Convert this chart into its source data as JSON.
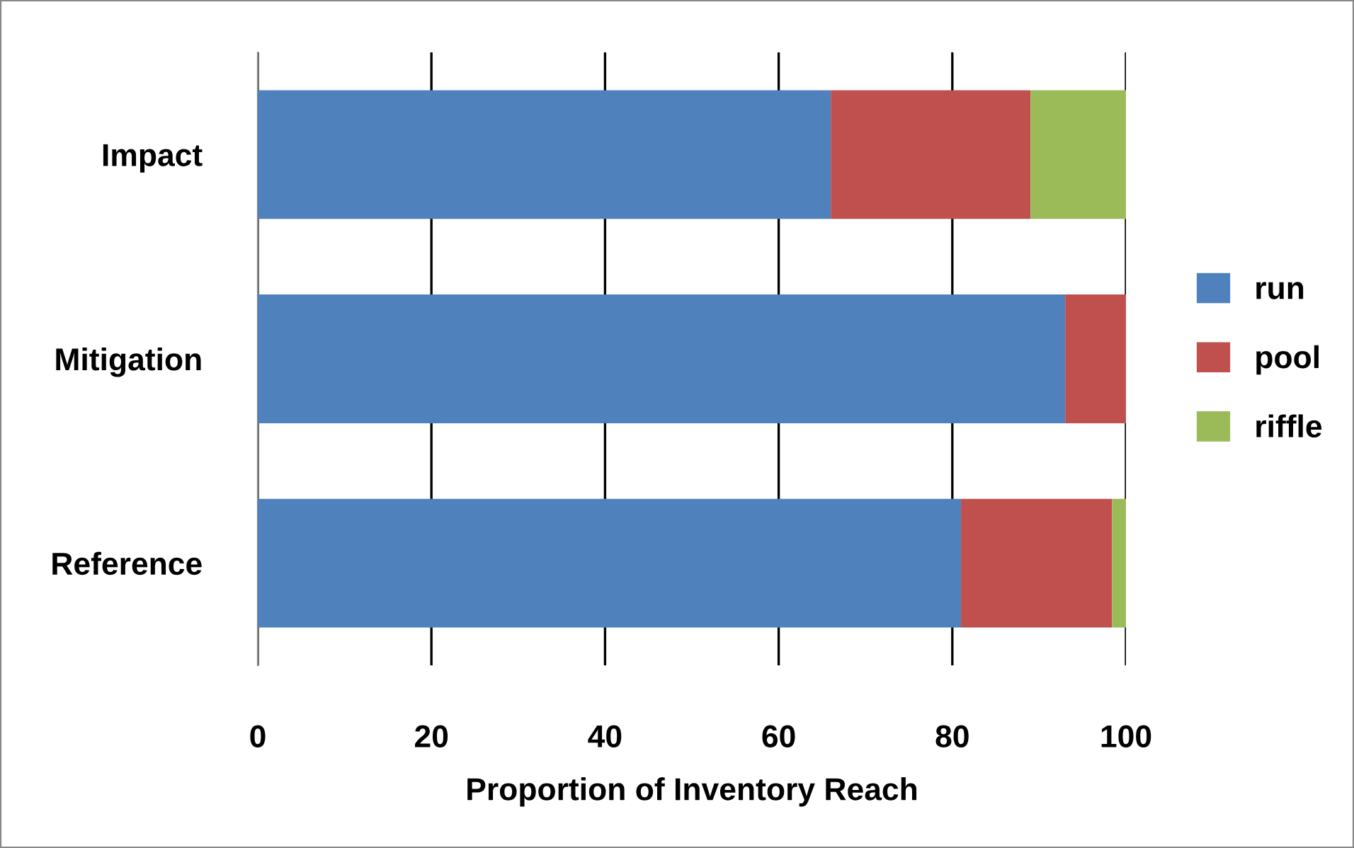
{
  "chart_data": {
    "type": "bar",
    "orientation": "horizontal",
    "stacked": true,
    "xlabel": "Proportion of Inventory Reach",
    "categories": [
      "Impact",
      "Mitigation",
      "Reference"
    ],
    "series": [
      {
        "name": "run",
        "color": "#4f81bd",
        "values": [
          66,
          93,
          81
        ]
      },
      {
        "name": "pool",
        "color": "#c0504d",
        "values": [
          23,
          7,
          17.4
        ]
      },
      {
        "name": "riffle",
        "color": "#9bbb59",
        "values": [
          11,
          0,
          1.6
        ]
      }
    ],
    "xlim": [
      0,
      100
    ],
    "xticks": [
      0,
      20,
      40,
      60,
      80,
      100
    ],
    "grid": "x",
    "legend": "right"
  }
}
